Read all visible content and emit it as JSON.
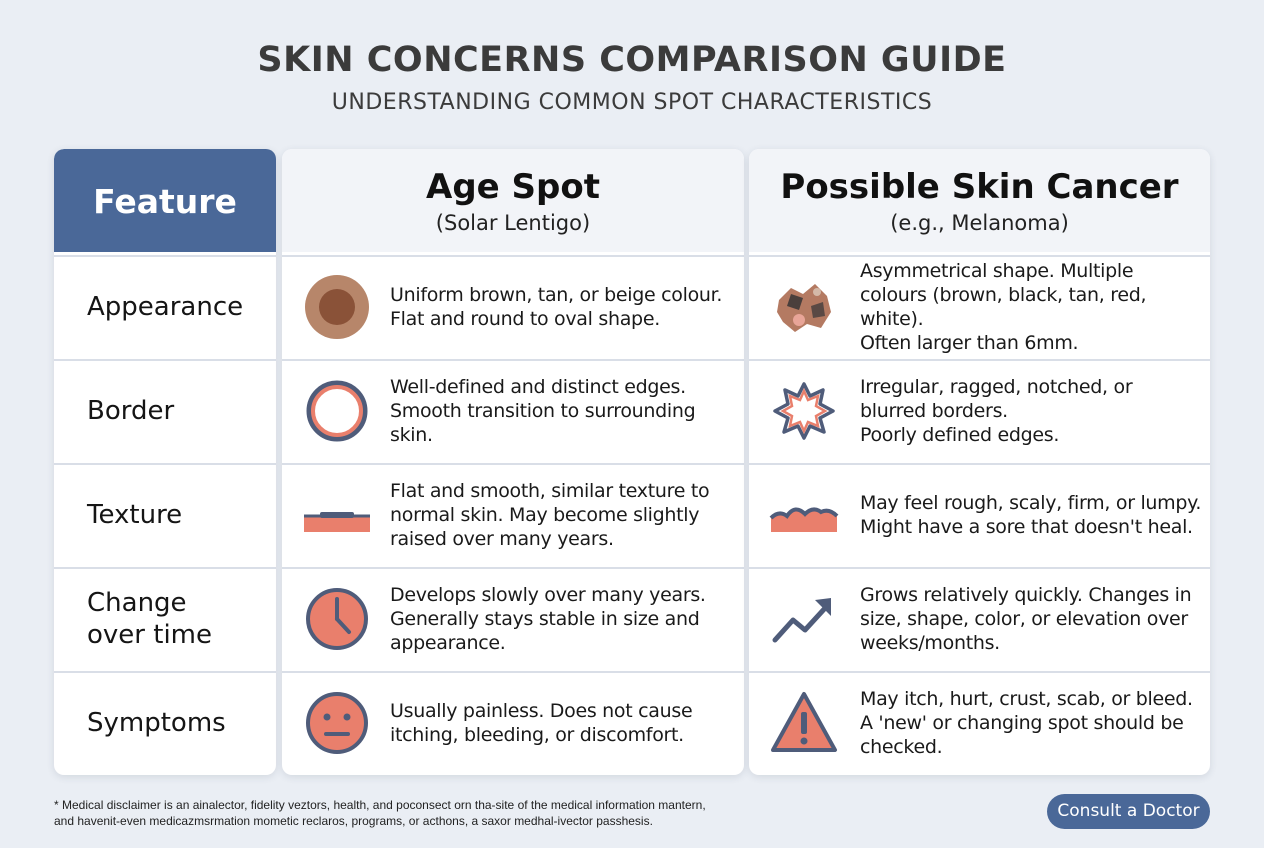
{
  "title": "SKIN CONCERNS COMPARISON GUIDE",
  "subtitle": "UNDERSTANDING COMMON SPOT CHARACTERISTICS",
  "colors": {
    "accent": "#4a6898",
    "spot": "#e97f6c",
    "outline": "#4f5c7a"
  },
  "feature_header": "Feature",
  "age_header": {
    "title": "Age Spot",
    "subtitle": "(Solar Lentigo)"
  },
  "cancer_header": {
    "title": "Possible Skin Cancer",
    "subtitle": "(e.g., Melanoma)"
  },
  "features": [
    "Appearance",
    "Border",
    "Texture",
    "Change\nover time",
    "Symptoms"
  ],
  "age_rows": [
    {
      "icon": "brown-round-spot-icon",
      "text": "Uniform brown, tan, or beige colour.\nFlat and round to oval shape."
    },
    {
      "icon": "smooth-circle-border-icon",
      "text": "Well-defined and distinct edges.\nSmooth transition to surrounding skin."
    },
    {
      "icon": "flat-skin-layer-icon",
      "text": "Flat and smooth, similar texture to\nnormal skin. May become slightly\nraised over many years."
    },
    {
      "icon": "clock-icon",
      "text": "Develops slowly over many years.\nGenerally stays stable in size and\nappearance."
    },
    {
      "icon": "neutral-face-icon",
      "text": "Usually painless. Does not cause\nitching, bleeding, or discomfort."
    }
  ],
  "cancer_rows": [
    {
      "icon": "irregular-multicolor-spot-icon",
      "text": "Asymmetrical shape. Multiple\ncolours (brown, black, tan, red, white).\nOften larger than 6mm."
    },
    {
      "icon": "jagged-border-icon",
      "text": "Irregular, ragged, notched, or\nblurred borders.\nPoorly defined edges."
    },
    {
      "icon": "lumpy-skin-layer-icon",
      "text": "May feel rough, scaly, firm, or lumpy.\nMight have a sore that doesn't heal."
    },
    {
      "icon": "trending-up-arrow-icon",
      "text": "Grows relatively quickly. Changes in\nsize, shape, color, or elevation over\nweeks/months."
    },
    {
      "icon": "warning-triangle-icon",
      "text": "May itch, hurt, crust, scab, or bleed.\nA 'new' or changing spot should be\nchecked."
    }
  ],
  "disclaimer": "* Medical disclaimer is an ainalector, fidelity veztors, health, and poconsect orn tha-site of the medical information mantern,\nand havenit-even medicazmsrmation mometic reclaros, programs, or acthons, a saxor medhal-ivector passhesis.",
  "consult_button": "Consult a Doctor"
}
